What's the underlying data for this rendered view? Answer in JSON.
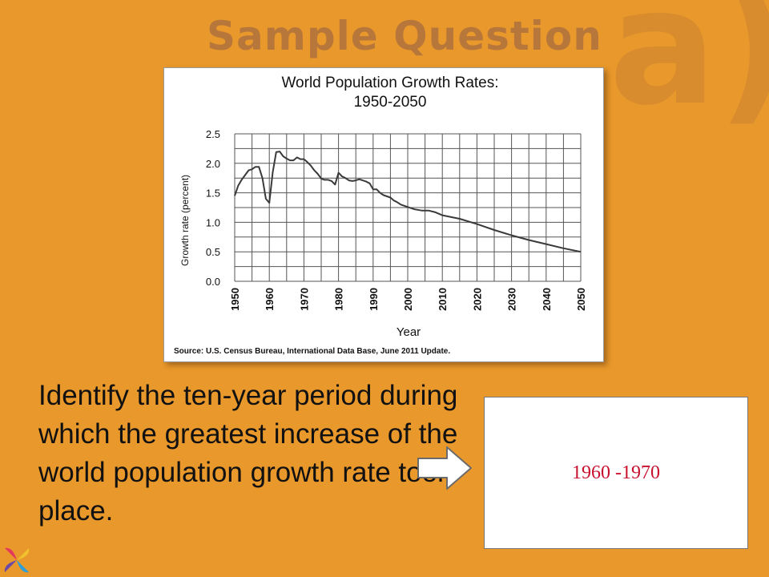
{
  "slide": {
    "title": "Sample Question",
    "part_label": "a)",
    "question": "Identify the ten-year period during which the greatest increase of the world population growth rate took place.",
    "answer": "1960 -1970"
  },
  "colors": {
    "background": "#E9982B",
    "title": "#B8773A",
    "answer_text": "#C8102E",
    "line": "#3a3a3a"
  },
  "icons": {
    "arrow": "right-arrow-icon",
    "logo": "pinwheel-logo-icon"
  },
  "chart_data": {
    "type": "line",
    "title_line1": "World Population Growth Rates:",
    "title_line2": "1950-2050",
    "xlabel": "Year",
    "ylabel": "Growth rate (percent)",
    "source": "Source: U.S. Census Bureau, International Data Base, June 2011 Update.",
    "xlim": [
      1950,
      2050
    ],
    "ylim": [
      0,
      2.5
    ],
    "grid": true,
    "xticks": [
      "1950",
      "1960",
      "1970",
      "1980",
      "1990",
      "2000",
      "2010",
      "2020",
      "2030",
      "2040",
      "2050"
    ],
    "yticks": [
      "0.0",
      "0.5",
      "1.0",
      "1.5",
      "2.0",
      "2.5"
    ],
    "x": [
      1950,
      1951,
      1952,
      1953,
      1954,
      1955,
      1956,
      1957,
      1958,
      1959,
      1960,
      1961,
      1962,
      1963,
      1964,
      1965,
      1966,
      1967,
      1968,
      1969,
      1970,
      1971,
      1972,
      1973,
      1974,
      1975,
      1976,
      1977,
      1978,
      1979,
      1980,
      1981,
      1982,
      1983,
      1984,
      1985,
      1986,
      1987,
      1988,
      1989,
      1990,
      1991,
      1992,
      1993,
      1994,
      1995,
      1996,
      1997,
      1998,
      1999,
      2000,
      2002,
      2004,
      2006,
      2008,
      2010,
      2015,
      2020,
      2025,
      2030,
      2035,
      2040,
      2045,
      2050
    ],
    "values": [
      1.45,
      1.62,
      1.72,
      1.8,
      1.88,
      1.9,
      1.94,
      1.94,
      1.75,
      1.4,
      1.33,
      1.85,
      2.19,
      2.2,
      2.12,
      2.08,
      2.05,
      2.05,
      2.1,
      2.07,
      2.07,
      2.02,
      1.96,
      1.88,
      1.82,
      1.74,
      1.72,
      1.72,
      1.7,
      1.64,
      1.84,
      1.78,
      1.75,
      1.71,
      1.7,
      1.71,
      1.73,
      1.71,
      1.69,
      1.66,
      1.56,
      1.56,
      1.5,
      1.46,
      1.44,
      1.42,
      1.37,
      1.34,
      1.3,
      1.28,
      1.26,
      1.22,
      1.2,
      1.2,
      1.17,
      1.12,
      1.06,
      0.97,
      0.87,
      0.78,
      0.7,
      0.63,
      0.56,
      0.5
    ]
  }
}
